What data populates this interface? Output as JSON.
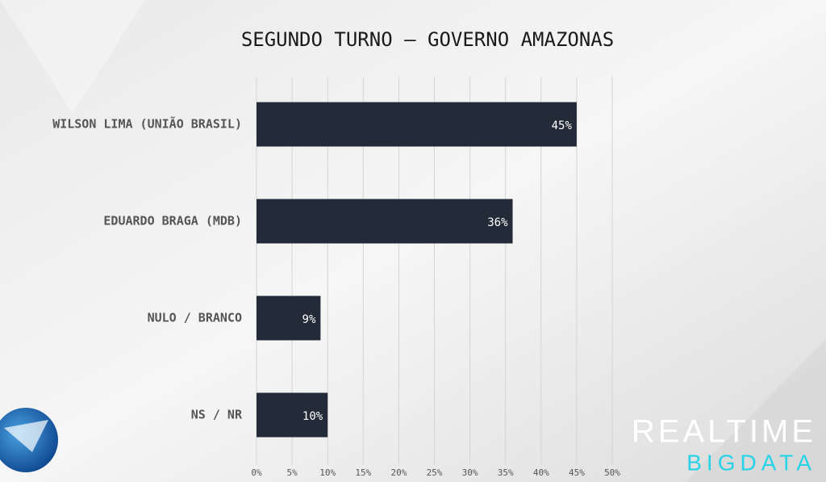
{
  "chart_data": {
    "type": "hbar",
    "title": "SEGUNDO TURNO – GOVERNO AMAZONAS",
    "categories": [
      "WILSON LIMA (UNIÃO BRASIL)",
      "EDUARDO BRAGA (MDB)",
      "NULO / BRANCO",
      "NS / NR"
    ],
    "values": [
      45,
      36,
      9,
      10
    ],
    "value_labels": [
      "45%",
      "36%",
      "9%",
      "10%"
    ],
    "color": "#232a38",
    "xlim": [
      0,
      50
    ],
    "xticks": [
      {
        "value": 0,
        "label": "0%"
      },
      {
        "value": 5,
        "label": "5%"
      },
      {
        "value": 10,
        "label": "10%"
      },
      {
        "value": 15,
        "label": "15%"
      },
      {
        "value": 20,
        "label": "20%"
      },
      {
        "value": 25,
        "label": "25%"
      },
      {
        "value": 30,
        "label": "30%"
      },
      {
        "value": 35,
        "label": "35%"
      },
      {
        "value": 40,
        "label": "40%"
      },
      {
        "value": 45,
        "label": "45%"
      },
      {
        "value": 50,
        "label": "50%"
      }
    ],
    "grid": true
  },
  "logo_text": [
    "REALTIME",
    "BIGDATA"
  ]
}
